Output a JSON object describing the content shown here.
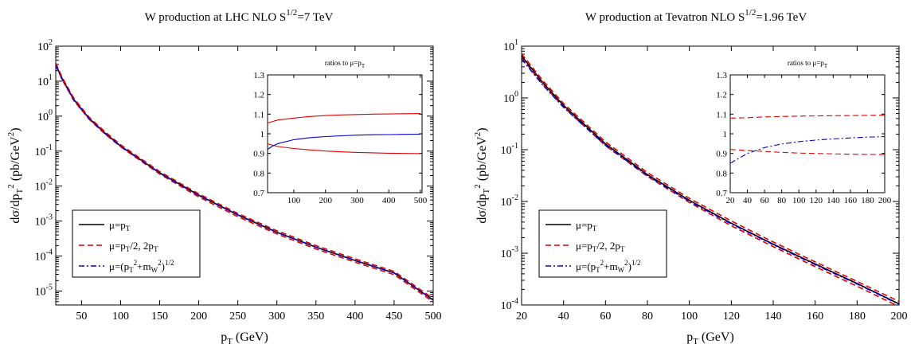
{
  "chart_data": [
    {
      "type": "line",
      "title": "W production at LHC    NLO    S^{1/2}=7 TeV",
      "title_parts": {
        "main": "W production at LHC    NLO    S",
        "sup": "1/2",
        "tail": "=7 TeV"
      },
      "xlabel": "p_T (GeV)",
      "ylabel": "dσ/dp_T^2 (pb/GeV^2)",
      "xlim": [
        17,
        500
      ],
      "ylim": [
        4e-06,
        100
      ],
      "yscale": "log",
      "xticks": [
        50,
        100,
        150,
        200,
        250,
        300,
        350,
        400,
        450,
        500
      ],
      "ytick_exponents": [
        2,
        1,
        0,
        -1,
        -2,
        -3,
        -4,
        -5
      ],
      "grid": false,
      "legend_position": "bottom-left",
      "legend": [
        {
          "label": "μ=p_T",
          "style": "solid",
          "color": "#000000"
        },
        {
          "label": "μ=p_T/2, 2p_T",
          "style": "dashed",
          "color": "#e00000"
        },
        {
          "label": "μ=(p_T^2+m_W^2)^{1/2}",
          "style": "dashdot",
          "color": "#0000d0"
        }
      ],
      "series": [
        {
          "style": "solid",
          "color": "#000000",
          "x": [
            17,
            25,
            40,
            60,
            80,
            100,
            150,
            200,
            250,
            300,
            350,
            400,
            450,
            500
          ],
          "y": [
            30,
            12,
            3,
            0.85,
            0.33,
            0.14,
            0.024,
            0.0055,
            0.0015,
            0.00048,
            0.00018,
            7.5e-05,
            3.3e-05,
            5.5e-06
          ]
        },
        {
          "style": "dashed",
          "color": "#e00000",
          "x": [
            17,
            25,
            40,
            60,
            80,
            100,
            150,
            200,
            250,
            300,
            350,
            400,
            450,
            500
          ],
          "y": [
            33,
            13,
            3.3,
            0.92,
            0.36,
            0.152,
            0.026,
            0.006,
            0.00165,
            0.00053,
            0.0002,
            8.3e-05,
            3.65e-05,
            6.1e-06
          ]
        },
        {
          "style": "dashed",
          "color": "#e00000",
          "x": [
            17,
            25,
            40,
            60,
            80,
            100,
            150,
            200,
            250,
            300,
            350,
            400,
            450,
            500
          ],
          "y": [
            28,
            11.3,
            2.8,
            0.8,
            0.31,
            0.133,
            0.0222,
            0.0049,
            0.00134,
            0.00043,
            0.00016,
            6.7e-05,
            2.95e-05,
            4.9e-06
          ]
        },
        {
          "style": "dashdot",
          "color": "#0000d0",
          "x": [
            17,
            25,
            40,
            60,
            80,
            100,
            150,
            200,
            250,
            300,
            350,
            400,
            450,
            500
          ],
          "y": [
            28.5,
            11.5,
            2.9,
            0.82,
            0.32,
            0.137,
            0.0235,
            0.0054,
            0.0015,
            0.00048,
            0.00018,
            7.5e-05,
            3.3e-05,
            5.5e-06
          ]
        }
      ],
      "inset": {
        "title": "ratios to μ=p_T",
        "xlim": [
          17,
          505
        ],
        "ylim": [
          0.7,
          1.3
        ],
        "xticks": [
          100,
          200,
          300,
          400,
          500
        ],
        "yticks": [
          0.7,
          0.8,
          0.9,
          1.0,
          1.1,
          1.2,
          1.3
        ],
        "ytick_labels": [
          "0.7",
          "0.8",
          "0.9",
          "1",
          "1.1",
          "1.2",
          "1.3"
        ],
        "series": [
          {
            "style": "solid",
            "color": "#e00000",
            "x": [
              17,
              50,
              100,
              150,
              200,
              250,
              300,
              350,
              400,
              450,
              500
            ],
            "y": [
              1.055,
              1.07,
              1.08,
              1.088,
              1.093,
              1.096,
              1.098,
              1.1,
              1.101,
              1.102,
              1.103
            ]
          },
          {
            "style": "solid",
            "color": "#e00000",
            "x": [
              17,
              50,
              100,
              150,
              200,
              250,
              300,
              350,
              400,
              450,
              500
            ],
            "y": [
              0.948,
              0.935,
              0.925,
              0.918,
              0.912,
              0.908,
              0.905,
              0.903,
              0.901,
              0.9,
              0.899
            ]
          },
          {
            "style": "solid",
            "color": "#0000d0",
            "x": [
              17,
              30,
              50,
              100,
              150,
              200,
              250,
              300,
              350,
              400,
              450,
              500
            ],
            "y": [
              0.92,
              0.935,
              0.95,
              0.97,
              0.98,
              0.986,
              0.99,
              0.993,
              0.995,
              0.996,
              0.997,
              0.998
            ]
          }
        ]
      }
    },
    {
      "type": "line",
      "title": "W production at Tevatron    NLO    S^{1/2}=1.96 TeV",
      "title_parts": {
        "main": "W production at Tevatron    NLO    S",
        "sup": "1/2",
        "tail": "=1.96 TeV"
      },
      "xlabel": "p_T (GeV)",
      "ylabel": "dσ/dp_T^2 (pb/GeV^2)",
      "xlim": [
        20,
        200
      ],
      "ylim": [
        0.0001,
        10
      ],
      "yscale": "log",
      "xticks": [
        20,
        40,
        60,
        80,
        100,
        120,
        140,
        160,
        180,
        200
      ],
      "ytick_exponents": [
        1,
        0,
        -1,
        -2,
        -3,
        -4
      ],
      "grid": false,
      "legend_position": "bottom-left",
      "legend": [
        {
          "label": "μ=p_T",
          "style": "solid",
          "color": "#000000"
        },
        {
          "label": "μ=p_T/2, 2p_T",
          "style": "dashed",
          "color": "#e00000"
        },
        {
          "label": "μ=(p_T^2+m_W^2)^{1/2}",
          "style": "dashdot",
          "color": "#0000d0"
        }
      ],
      "series": [
        {
          "style": "solid",
          "color": "#000000",
          "x": [
            20,
            30,
            40,
            60,
            80,
            100,
            120,
            140,
            160,
            180,
            200
          ],
          "y": [
            6.5,
            2.0,
            0.72,
            0.13,
            0.033,
            0.0105,
            0.0038,
            0.0015,
            0.00062,
            0.00026,
            0.000105
          ]
        },
        {
          "style": "dashed",
          "color": "#e00000",
          "x": [
            20,
            30,
            40,
            60,
            80,
            100,
            120,
            140,
            160,
            180,
            200
          ],
          "y": [
            7.1,
            2.2,
            0.78,
            0.142,
            0.036,
            0.0115,
            0.0042,
            0.00165,
            0.00068,
            0.000285,
            0.000117
          ]
        },
        {
          "style": "dashed",
          "color": "#e00000",
          "x": [
            20,
            30,
            40,
            60,
            80,
            100,
            120,
            140,
            160,
            180,
            200
          ],
          "y": [
            6.0,
            1.85,
            0.67,
            0.12,
            0.0305,
            0.0096,
            0.0034,
            0.00134,
            0.00055,
            0.00023,
            9.3e-05
          ]
        },
        {
          "style": "dashdot",
          "color": "#0000d0",
          "x": [
            20,
            30,
            40,
            60,
            80,
            100,
            120,
            140,
            160,
            180,
            200
          ],
          "y": [
            5.7,
            1.8,
            0.66,
            0.122,
            0.0315,
            0.0101,
            0.0037,
            0.00146,
            0.0006,
            0.000255,
            0.000103
          ]
        }
      ],
      "inset": {
        "title": "ratios to μ=p_T",
        "xlim": [
          20,
          200
        ],
        "ylim": [
          0.7,
          1.3
        ],
        "xticks": [
          20,
          40,
          60,
          80,
          100,
          120,
          140,
          160,
          180,
          200
        ],
        "yticks": [
          0.7,
          0.8,
          0.9,
          1.0,
          1.1,
          1.2,
          1.3
        ],
        "ytick_labels": [
          "0.7",
          "0.8",
          "0.9",
          "1",
          "1.1",
          "1.2",
          "1.3"
        ],
        "series": [
          {
            "style": "dashed",
            "color": "#e00000",
            "x": [
              20,
              40,
              60,
              80,
              100,
              120,
              140,
              160,
              180,
              200
            ],
            "y": [
              1.08,
              1.082,
              1.086,
              1.088,
              1.09,
              1.091,
              1.092,
              1.093,
              1.094,
              1.095
            ]
          },
          {
            "style": "dashed",
            "color": "#e00000",
            "x": [
              20,
              40,
              60,
              80,
              100,
              120,
              140,
              160,
              180,
              200
            ],
            "y": [
              0.92,
              0.915,
              0.91,
              0.905,
              0.902,
              0.9,
              0.898,
              0.896,
              0.895,
              0.894
            ]
          },
          {
            "style": "dashdot",
            "color": "#0000d0",
            "x": [
              20,
              30,
              40,
              50,
              60,
              80,
              100,
              120,
              140,
              160,
              180,
              200
            ],
            "y": [
              0.85,
              0.875,
              0.9,
              0.915,
              0.93,
              0.948,
              0.96,
              0.968,
              0.974,
              0.979,
              0.983,
              0.986
            ]
          }
        ]
      }
    }
  ]
}
